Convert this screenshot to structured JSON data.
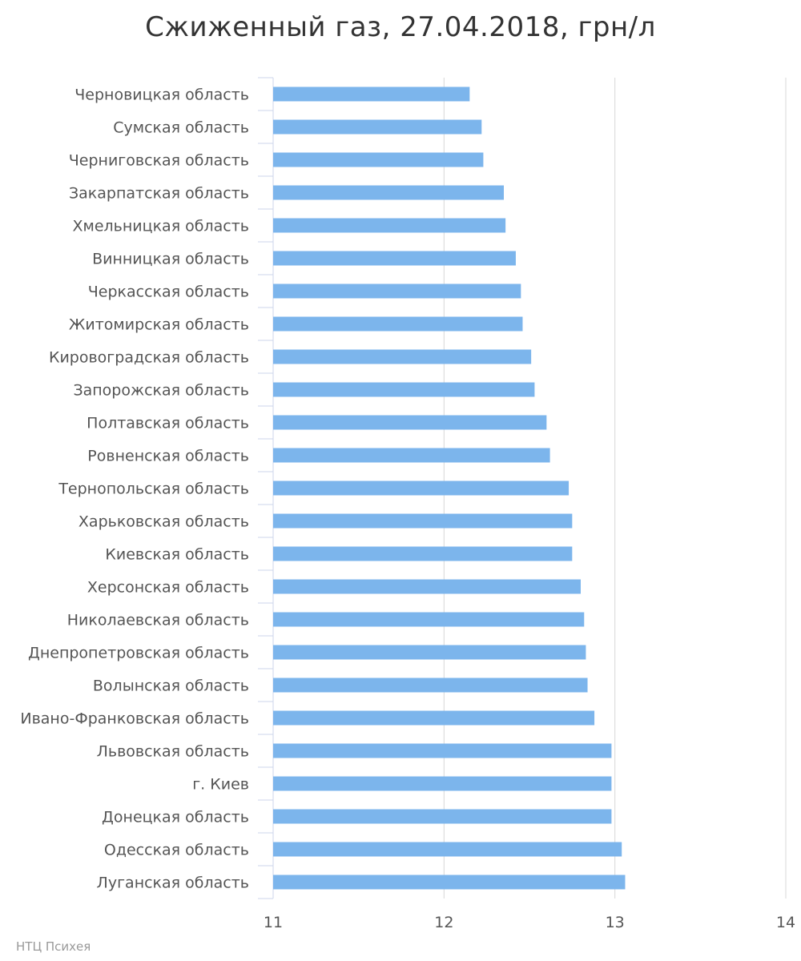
{
  "chart_data": {
    "type": "bar",
    "orientation": "horizontal",
    "title": "Сжиженный газ, 27.04.2018, грн/л",
    "categories": [
      "Черновицкая область",
      "Сумская область",
      "Черниговская область",
      "Закарпатская область",
      "Хмельницкая область",
      "Винницкая область",
      "Черкасская область",
      "Житомирская область",
      "Кировоградская область",
      "Запорожская область",
      "Полтавская область",
      "Ровненская область",
      "Тернопольская область",
      "Харьковская область",
      "Киевская область",
      "Херсонская область",
      "Николаевская область",
      "Днепропетровская область",
      "Волынская область",
      "Ивано-Франковская область",
      "Львовская область",
      "г. Киев",
      "Донецкая область",
      "Одесская область",
      "Луганская область"
    ],
    "values": [
      12.15,
      12.22,
      12.23,
      12.35,
      12.36,
      12.42,
      12.45,
      12.46,
      12.51,
      12.53,
      12.6,
      12.62,
      12.73,
      12.75,
      12.75,
      12.8,
      12.82,
      12.83,
      12.84,
      12.88,
      12.98,
      12.98,
      12.98,
      13.04,
      13.06
    ],
    "xlim": [
      11,
      14
    ],
    "x_ticks": [
      "11",
      "12",
      "13",
      "14"
    ],
    "grid": true,
    "bar_color": "#7cb5ec",
    "grid_color": "#d8d8d8",
    "axis_color": "#ccd6eb"
  },
  "credit": "НТЦ Психея"
}
